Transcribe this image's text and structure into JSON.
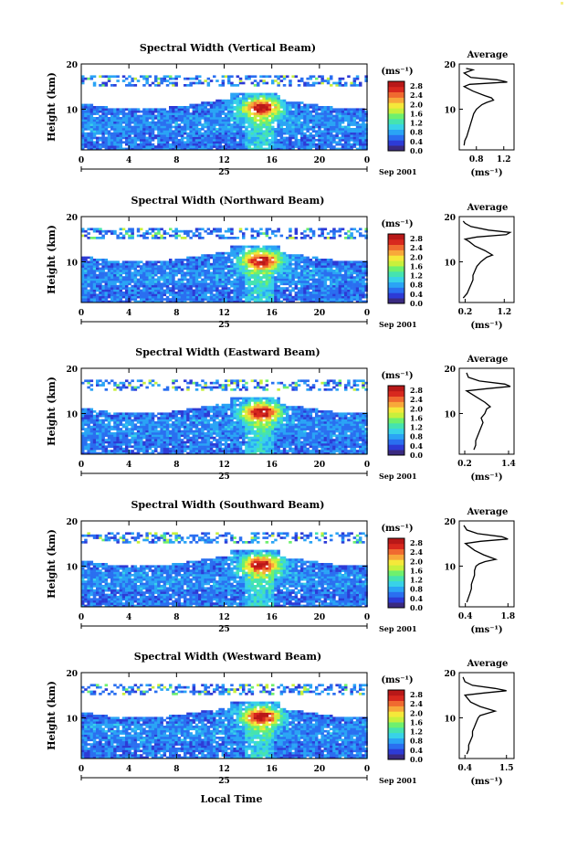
{
  "figure": {
    "xlabel": "Local Time",
    "date_label": "Sep 2001",
    "day_label": "25",
    "ylabel": "Height (km)",
    "colorbar_unit": "(ms⁻¹)",
    "profile_title": "Average",
    "profile_unit": "(ms⁻¹)"
  },
  "colors": {
    "scale": [
      "#3a2a80",
      "#2d3bd6",
      "#2a6ff0",
      "#2aa4f5",
      "#38d2e8",
      "#45e3b0",
      "#6ef06e",
      "#c8f03c",
      "#f5e83a",
      "#f8a83a",
      "#f06a30",
      "#d8281e",
      "#b81818"
    ],
    "background": "#ffffff"
  },
  "chart_data": [
    {
      "type": "heatmap",
      "title": "Spectral Width (Vertical Beam)",
      "x_ticks": [
        "0",
        "4",
        "8",
        "12",
        "16",
        "20",
        "0"
      ],
      "xlim": [
        0,
        24
      ],
      "y_ticks": [
        "10",
        "20"
      ],
      "ylim": [
        1,
        20
      ],
      "colorbar_ticks": [
        "2.8",
        "2.4",
        "2.0",
        "1.6",
        "1.2",
        "0.8",
        "0.4",
        "0.0"
      ],
      "colorbar_range": [
        0.0,
        3.0
      ],
      "profile": {
        "title": "Average",
        "x_ticks": [
          "0.8",
          "1.2"
        ],
        "xlim": [
          0.55,
          1.35
        ],
        "y_ticks": [
          "10",
          "20"
        ],
        "points": [
          [
            0.62,
            2
          ],
          [
            0.63,
            3
          ],
          [
            0.66,
            4
          ],
          [
            0.68,
            5
          ],
          [
            0.7,
            6
          ],
          [
            0.72,
            7
          ],
          [
            0.74,
            8
          ],
          [
            0.76,
            9
          ],
          [
            0.8,
            10
          ],
          [
            0.88,
            11
          ],
          [
            0.95,
            11.5
          ],
          [
            1.05,
            12
          ],
          [
            1.02,
            12.5
          ],
          [
            0.92,
            13
          ],
          [
            0.75,
            14
          ],
          [
            0.62,
            15
          ],
          [
            0.7,
            15.5
          ],
          [
            1.25,
            16
          ],
          [
            1.1,
            16.5
          ],
          [
            0.72,
            17
          ],
          [
            0.62,
            18
          ],
          [
            0.75,
            18.7
          ],
          [
            0.65,
            19
          ]
        ]
      }
    },
    {
      "type": "heatmap",
      "title": "Spectral Width (Northward Beam)",
      "x_ticks": [
        "0",
        "4",
        "8",
        "12",
        "16",
        "20",
        "0"
      ],
      "xlim": [
        0,
        24
      ],
      "y_ticks": [
        "10",
        "20"
      ],
      "ylim": [
        1,
        20
      ],
      "colorbar_ticks": [
        "2.8",
        "2.4",
        "2.0",
        "1.6",
        "1.2",
        "0.8",
        "0.4",
        "0.0"
      ],
      "colorbar_range": [
        0.0,
        3.0
      ],
      "profile": {
        "title": "Average",
        "x_ticks": [
          "0.2",
          "1.2"
        ],
        "xlim": [
          0.05,
          1.45
        ],
        "y_ticks": [
          "10",
          "20"
        ],
        "points": [
          [
            0.15,
            2
          ],
          [
            0.25,
            3
          ],
          [
            0.3,
            4
          ],
          [
            0.35,
            5
          ],
          [
            0.4,
            6
          ],
          [
            0.4,
            7
          ],
          [
            0.45,
            8
          ],
          [
            0.5,
            9
          ],
          [
            0.6,
            10
          ],
          [
            0.75,
            11
          ],
          [
            0.9,
            11.5
          ],
          [
            0.7,
            12.5
          ],
          [
            0.45,
            13.5
          ],
          [
            0.3,
            14.5
          ],
          [
            0.2,
            15
          ],
          [
            0.5,
            15.5
          ],
          [
            1.25,
            16
          ],
          [
            1.35,
            16.5
          ],
          [
            0.8,
            17
          ],
          [
            0.35,
            17.8
          ],
          [
            0.2,
            18.5
          ],
          [
            0.15,
            19
          ]
        ]
      }
    },
    {
      "type": "heatmap",
      "title": "Spectral Width (Eastward Beam)",
      "x_ticks": [
        "0",
        "4",
        "8",
        "12",
        "16",
        "20",
        "0"
      ],
      "xlim": [
        0,
        24
      ],
      "y_ticks": [
        "10",
        "20"
      ],
      "ylim": [
        1,
        20
      ],
      "colorbar_ticks": [
        "2.8",
        "2.4",
        "2.0",
        "1.6",
        "1.2",
        "0.8",
        "0.4",
        "0.0"
      ],
      "colorbar_range": [
        0.0,
        3.0
      ],
      "profile": {
        "title": "Average",
        "x_ticks": [
          "0.2",
          "1.4"
        ],
        "xlim": [
          0.05,
          1.55
        ],
        "y_ticks": [
          "10",
          "20"
        ],
        "points": [
          [
            0.45,
            2
          ],
          [
            0.5,
            3
          ],
          [
            0.5,
            4
          ],
          [
            0.55,
            5
          ],
          [
            0.6,
            6
          ],
          [
            0.65,
            7
          ],
          [
            0.7,
            8
          ],
          [
            0.65,
            9
          ],
          [
            0.75,
            10
          ],
          [
            0.8,
            11
          ],
          [
            0.9,
            11.5
          ],
          [
            0.75,
            12.5
          ],
          [
            0.55,
            13.5
          ],
          [
            0.35,
            14.5
          ],
          [
            0.25,
            15
          ],
          [
            0.8,
            15.5
          ],
          [
            1.45,
            16
          ],
          [
            1.3,
            16.5
          ],
          [
            0.6,
            17.2
          ],
          [
            0.3,
            18
          ],
          [
            0.25,
            19
          ]
        ]
      }
    },
    {
      "type": "heatmap",
      "title": "Spectral Width (Southward Beam)",
      "x_ticks": [
        "0",
        "4",
        "8",
        "12",
        "16",
        "20",
        "0"
      ],
      "xlim": [
        0,
        24
      ],
      "y_ticks": [
        "10",
        "20"
      ],
      "ylim": [
        1,
        20
      ],
      "colorbar_ticks": [
        "2.8",
        "2.4",
        "2.0",
        "1.6",
        "1.2",
        "0.8",
        "0.4",
        "0.0"
      ],
      "colorbar_range": [
        0.0,
        3.0
      ],
      "profile": {
        "title": "Average",
        "x_ticks": [
          "0.4",
          "1.8"
        ],
        "xlim": [
          0.2,
          2.0
        ],
        "y_ticks": [
          "10",
          "20"
        ],
        "points": [
          [
            0.45,
            2
          ],
          [
            0.5,
            3
          ],
          [
            0.55,
            4
          ],
          [
            0.6,
            5
          ],
          [
            0.6,
            6
          ],
          [
            0.65,
            7
          ],
          [
            0.7,
            8
          ],
          [
            0.7,
            9
          ],
          [
            0.75,
            10
          ],
          [
            0.85,
            10.5
          ],
          [
            1.05,
            11
          ],
          [
            1.4,
            11.5
          ],
          [
            1.0,
            12.5
          ],
          [
            0.7,
            13.5
          ],
          [
            0.5,
            14.5
          ],
          [
            0.4,
            15
          ],
          [
            0.9,
            15.5
          ],
          [
            1.8,
            16
          ],
          [
            1.6,
            16.5
          ],
          [
            0.8,
            17.2
          ],
          [
            0.45,
            18
          ],
          [
            0.35,
            19
          ]
        ]
      }
    },
    {
      "type": "heatmap",
      "title": "Spectral Width (Westward Beam)",
      "x_ticks": [
        "0",
        "4",
        "8",
        "12",
        "16",
        "20",
        "0"
      ],
      "xlim": [
        0,
        24
      ],
      "y_ticks": [
        "10",
        "20"
      ],
      "ylim": [
        1,
        20
      ],
      "colorbar_ticks": [
        "2.8",
        "2.4",
        "2.0",
        "1.6",
        "1.2",
        "0.8",
        "0.4",
        "0.0"
      ],
      "colorbar_range": [
        0.0,
        3.0
      ],
      "profile": {
        "title": "Average",
        "x_ticks": [
          "0.4",
          "1.5"
        ],
        "xlim": [
          0.25,
          1.7
        ],
        "y_ticks": [
          "10",
          "20"
        ],
        "points": [
          [
            0.45,
            2
          ],
          [
            0.5,
            3
          ],
          [
            0.5,
            4
          ],
          [
            0.55,
            5
          ],
          [
            0.6,
            6
          ],
          [
            0.6,
            7
          ],
          [
            0.65,
            8
          ],
          [
            0.7,
            9
          ],
          [
            0.75,
            10
          ],
          [
            0.8,
            10.5
          ],
          [
            1.0,
            11
          ],
          [
            1.2,
            11.5
          ],
          [
            0.8,
            12.5
          ],
          [
            0.55,
            13.5
          ],
          [
            0.45,
            14.5
          ],
          [
            0.4,
            15
          ],
          [
            0.9,
            15.5
          ],
          [
            1.5,
            16
          ],
          [
            1.2,
            16.5
          ],
          [
            0.6,
            17.2
          ],
          [
            0.4,
            18
          ],
          [
            0.35,
            19
          ]
        ]
      }
    }
  ]
}
